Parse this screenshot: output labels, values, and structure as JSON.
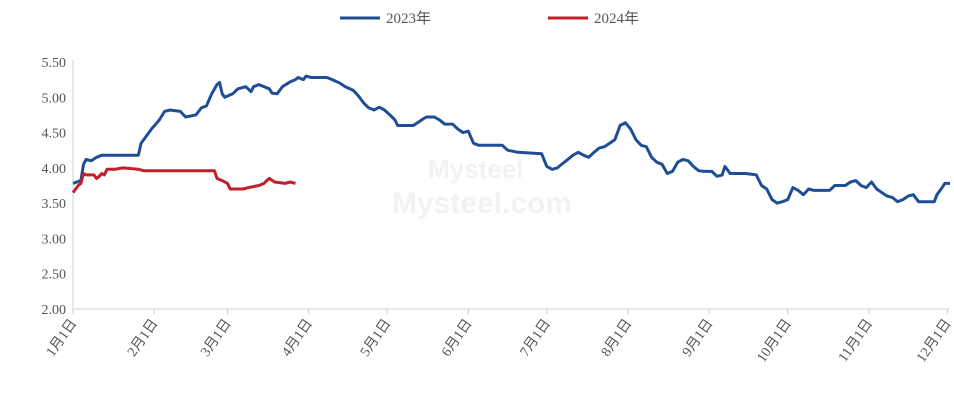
{
  "chart_data": {
    "type": "line",
    "title": "",
    "xlabel": "",
    "ylabel": "",
    "ylim": [
      2.0,
      5.5
    ],
    "yticks": [
      "2.00",
      "2.50",
      "3.00",
      "3.50",
      "4.00",
      "4.50",
      "5.00",
      "5.50"
    ],
    "xticks": [
      "1月1日",
      "2月1日",
      "3月1日",
      "4月1日",
      "5月1日",
      "6月1日",
      "7月1日",
      "8月1日",
      "9月1日",
      "10月1日",
      "11月1日",
      "12月1日"
    ],
    "grid": false,
    "legend_position": "top-center",
    "series": [
      {
        "name": "2023年",
        "color": "#1f4e96",
        "points": [
          [
            1,
            3.78
          ],
          [
            4,
            3.82
          ],
          [
            5,
            4.05
          ],
          [
            6,
            4.12
          ],
          [
            8,
            4.1
          ],
          [
            10,
            4.15
          ],
          [
            12,
            4.18
          ],
          [
            20,
            4.18
          ],
          [
            26,
            4.18
          ],
          [
            27,
            4.35
          ],
          [
            31,
            4.55
          ],
          [
            34,
            4.68
          ],
          [
            36,
            4.8
          ],
          [
            38,
            4.82
          ],
          [
            42,
            4.8
          ],
          [
            44,
            4.72
          ],
          [
            48,
            4.75
          ],
          [
            50,
            4.85
          ],
          [
            52,
            4.88
          ],
          [
            54,
            5.05
          ],
          [
            56,
            5.18
          ],
          [
            57,
            5.21
          ],
          [
            58,
            5.05
          ],
          [
            59,
            5.0
          ],
          [
            62,
            5.05
          ],
          [
            64,
            5.12
          ],
          [
            67,
            5.15
          ],
          [
            69,
            5.08
          ],
          [
            70,
            5.15
          ],
          [
            72,
            5.18
          ],
          [
            76,
            5.12
          ],
          [
            77,
            5.06
          ],
          [
            79,
            5.05
          ],
          [
            81,
            5.15
          ],
          [
            84,
            5.22
          ],
          [
            86,
            5.25
          ],
          [
            87,
            5.28
          ],
          [
            89,
            5.25
          ],
          [
            90,
            5.3
          ],
          [
            92,
            5.28
          ],
          [
            98,
            5.28
          ],
          [
            100,
            5.25
          ],
          [
            103,
            5.2
          ],
          [
            105,
            5.15
          ],
          [
            108,
            5.1
          ],
          [
            110,
            5.02
          ],
          [
            112,
            4.92
          ],
          [
            114,
            4.85
          ],
          [
            116,
            4.82
          ],
          [
            118,
            4.86
          ],
          [
            120,
            4.82
          ],
          [
            122,
            4.75
          ],
          [
            124,
            4.68
          ],
          [
            125,
            4.6
          ],
          [
            131,
            4.6
          ],
          [
            133,
            4.65
          ],
          [
            135,
            4.7
          ],
          [
            136,
            4.72
          ],
          [
            139,
            4.72
          ],
          [
            141,
            4.68
          ],
          [
            143,
            4.62
          ],
          [
            146,
            4.62
          ],
          [
            148,
            4.55
          ],
          [
            150,
            4.5
          ],
          [
            152,
            4.52
          ],
          [
            154,
            4.35
          ],
          [
            156,
            4.32
          ],
          [
            165,
            4.32
          ],
          [
            167,
            4.25
          ],
          [
            171,
            4.22
          ],
          [
            180,
            4.2
          ],
          [
            182,
            4.02
          ],
          [
            184,
            3.98
          ],
          [
            186,
            4.0
          ],
          [
            188,
            4.06
          ],
          [
            190,
            4.12
          ],
          [
            192,
            4.18
          ],
          [
            194,
            4.22
          ],
          [
            196,
            4.18
          ],
          [
            198,
            4.15
          ],
          [
            200,
            4.22
          ],
          [
            202,
            4.28
          ],
          [
            204,
            4.3
          ],
          [
            206,
            4.35
          ],
          [
            208,
            4.4
          ],
          [
            210,
            4.6
          ],
          [
            212,
            4.64
          ],
          [
            214,
            4.55
          ],
          [
            216,
            4.4
          ],
          [
            218,
            4.32
          ],
          [
            220,
            4.3
          ],
          [
            222,
            4.15
          ],
          [
            224,
            4.08
          ],
          [
            226,
            4.05
          ],
          [
            228,
            3.92
          ],
          [
            230,
            3.95
          ],
          [
            232,
            4.08
          ],
          [
            234,
            4.12
          ],
          [
            236,
            4.1
          ],
          [
            238,
            4.02
          ],
          [
            240,
            3.96
          ],
          [
            242,
            3.95
          ],
          [
            245,
            3.95
          ],
          [
            247,
            3.88
          ],
          [
            249,
            3.9
          ],
          [
            250,
            4.02
          ],
          [
            252,
            3.92
          ],
          [
            258,
            3.92
          ],
          [
            262,
            3.9
          ],
          [
            264,
            3.75
          ],
          [
            266,
            3.7
          ],
          [
            268,
            3.55
          ],
          [
            270,
            3.5
          ],
          [
            272,
            3.52
          ],
          [
            274,
            3.55
          ],
          [
            276,
            3.72
          ],
          [
            278,
            3.68
          ],
          [
            280,
            3.62
          ],
          [
            282,
            3.7
          ],
          [
            284,
            3.68
          ],
          [
            290,
            3.68
          ],
          [
            292,
            3.75
          ],
          [
            296,
            3.75
          ],
          [
            298,
            3.8
          ],
          [
            300,
            3.82
          ],
          [
            302,
            3.75
          ],
          [
            304,
            3.72
          ],
          [
            306,
            3.8
          ],
          [
            308,
            3.7
          ],
          [
            310,
            3.65
          ],
          [
            312,
            3.6
          ],
          [
            314,
            3.58
          ],
          [
            316,
            3.52
          ],
          [
            318,
            3.55
          ],
          [
            320,
            3.6
          ],
          [
            322,
            3.62
          ],
          [
            324,
            3.52
          ],
          [
            330,
            3.52
          ],
          [
            331,
            3.62
          ],
          [
            333,
            3.72
          ],
          [
            334,
            3.78
          ],
          [
            336,
            3.78
          ]
        ]
      },
      {
        "name": "2024年",
        "color": "#c0202a",
        "points": [
          [
            1,
            3.65
          ],
          [
            3,
            3.75
          ],
          [
            4,
            3.78
          ],
          [
            5,
            3.92
          ],
          [
            6,
            3.9
          ],
          [
            9,
            3.9
          ],
          [
            10,
            3.85
          ],
          [
            11,
            3.88
          ],
          [
            12,
            3.92
          ],
          [
            13,
            3.9
          ],
          [
            14,
            3.98
          ],
          [
            17,
            3.98
          ],
          [
            20,
            4.0
          ],
          [
            26,
            3.98
          ],
          [
            28,
            3.96
          ],
          [
            40,
            3.96
          ],
          [
            55,
            3.96
          ],
          [
            56,
            3.85
          ],
          [
            58,
            3.82
          ],
          [
            60,
            3.78
          ],
          [
            61,
            3.7
          ],
          [
            66,
            3.7
          ],
          [
            68,
            3.72
          ],
          [
            72,
            3.75
          ],
          [
            74,
            3.78
          ],
          [
            75,
            3.82
          ],
          [
            76,
            3.85
          ],
          [
            78,
            3.8
          ],
          [
            82,
            3.78
          ],
          [
            84,
            3.8
          ],
          [
            86,
            3.78
          ]
        ]
      }
    ]
  }
}
